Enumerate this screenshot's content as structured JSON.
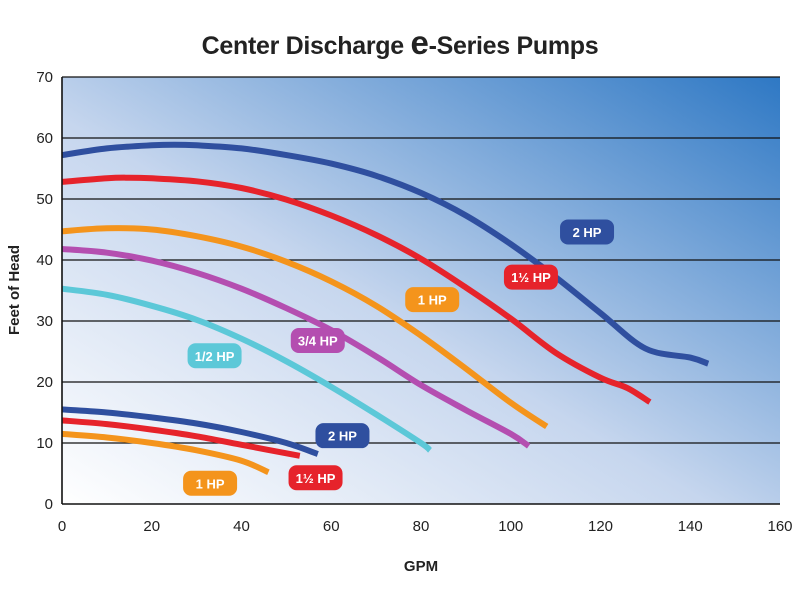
{
  "chart_data": {
    "type": "line",
    "title_prefix": "Center Discharge ",
    "title_e": "e",
    "title_suffix": "-Series Pumps",
    "xlabel": "GPM",
    "ylabel": "Feet of Head",
    "xlim": [
      0,
      160
    ],
    "ylim": [
      0,
      70
    ],
    "xticks": [
      "0",
      "20",
      "40",
      "60",
      "80",
      "100",
      "120",
      "140",
      "160"
    ],
    "yticks": [
      "0",
      "10",
      "20",
      "30",
      "40",
      "50",
      "60",
      "70"
    ],
    "grid": "horizontal",
    "background_gradient": [
      "#ffffff",
      "#2e78c4"
    ],
    "series": [
      {
        "name": "2 HP",
        "color": "#2f4f9f",
        "x": [
          0,
          10,
          20,
          25,
          30,
          40,
          50,
          60,
          70,
          80,
          90,
          100,
          110,
          120,
          130,
          140,
          144
        ],
        "y": [
          57.2,
          58.3,
          58.8,
          58.9,
          58.8,
          58.3,
          57.2,
          55.8,
          53.8,
          51,
          47.3,
          42.6,
          37.2,
          31.3,
          25.5,
          24,
          23
        ]
      },
      {
        "name": "1½ HP",
        "color": "#e6232b",
        "x": [
          0,
          10,
          15,
          20,
          30,
          40,
          50,
          60,
          70,
          80,
          90,
          100,
          110,
          120,
          126,
          131
        ],
        "y": [
          52.8,
          53.4,
          53.5,
          53.4,
          52.9,
          51.8,
          49.9,
          47.3,
          44.1,
          40.2,
          35.5,
          30.4,
          24.8,
          20.7,
          19,
          16.7
        ]
      },
      {
        "name": "1 HP",
        "color": "#f4941c",
        "x": [
          0,
          10,
          20,
          30,
          40,
          50,
          60,
          70,
          80,
          90,
          100,
          108
        ],
        "y": [
          44.7,
          45.2,
          45,
          43.9,
          42.2,
          39.7,
          36.5,
          32.5,
          27.6,
          22.2,
          16.6,
          12.7
        ]
      },
      {
        "name": "3/4 HP",
        "color": "#b44eb0",
        "x": [
          0,
          10,
          20,
          30,
          40,
          50,
          60,
          70,
          80,
          90,
          100,
          104
        ],
        "y": [
          41.8,
          41.2,
          39.9,
          37.9,
          35.3,
          32.1,
          28.5,
          24.2,
          19.5,
          15.4,
          11.5,
          9.5
        ]
      },
      {
        "name": "1/2 HP",
        "color": "#5cc8d8",
        "x": [
          0,
          10,
          20,
          30,
          40,
          50,
          60,
          70,
          80,
          82
        ],
        "y": [
          35.3,
          34.3,
          32.5,
          30.2,
          27.1,
          23.4,
          19.2,
          14.7,
          10,
          8.8
        ]
      },
      {
        "name": "2 HP",
        "color": "#2f4f9f",
        "x": [
          0,
          10,
          20,
          30,
          40,
          50,
          57
        ],
        "y": [
          15.5,
          15,
          14.2,
          13.2,
          11.8,
          10,
          8.2
        ]
      },
      {
        "name": "1½ HP",
        "color": "#e6232b",
        "x": [
          0,
          10,
          20,
          30,
          40,
          53
        ],
        "y": [
          13.7,
          13.1,
          12.2,
          11.1,
          9.7,
          7.9
        ]
      },
      {
        "name": "1 HP",
        "color": "#f4941c",
        "x": [
          0,
          10,
          20,
          30,
          40,
          46
        ],
        "y": [
          11.5,
          10.9,
          10,
          8.8,
          7.1,
          5.2
        ]
      }
    ],
    "labels": [
      {
        "text": "2 HP",
        "color": "#2f4f9f",
        "x": 117,
        "y": 44.6
      },
      {
        "text": "1½ HP",
        "color": "#e6232b",
        "x": 104.5,
        "y": 37.2
      },
      {
        "text": "1 HP",
        "color": "#f4941c",
        "x": 82.5,
        "y": 33.5
      },
      {
        "text": "3/4 HP",
        "color": "#b44eb0",
        "x": 57,
        "y": 26.8
      },
      {
        "text": "1/2 HP",
        "color": "#5cc8d8",
        "x": 34,
        "y": 24.3
      },
      {
        "text": "2 HP",
        "color": "#2f4f9f",
        "x": 62.5,
        "y": 11.2
      },
      {
        "text": "1½ HP",
        "color": "#e6232b",
        "x": 56.5,
        "y": 4.3
      },
      {
        "text": "1 HP",
        "color": "#f4941c",
        "x": 33,
        "y": 3.4
      }
    ]
  }
}
